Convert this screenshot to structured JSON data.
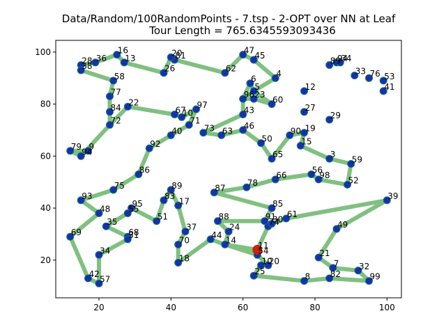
{
  "chart_data": {
    "type": "scatter",
    "title": "Data/Random/100RandomPoints - 7.tsp - 2-OPT over NN at Leaf",
    "subtitle": "Tour Length = 765.6345593093436",
    "xlabel": "",
    "ylabel": "",
    "xlim": [
      8,
      104
    ],
    "ylim": [
      5.5,
      104.5
    ],
    "xticks": [
      20,
      40,
      60,
      80,
      100
    ],
    "yticks": [
      20,
      40,
      60,
      80,
      100
    ],
    "grid": false,
    "colors": {
      "tour": "#80c080",
      "point": "#1a2fb0",
      "point_edge": "#0e7a6e",
      "start": "#cc2200"
    },
    "start_point": {
      "x": 64,
      "y": 24
    },
    "points": [
      {
        "label": "11",
        "x": 64,
        "y": 24
      },
      {
        "label": "74",
        "x": 67,
        "y": 33
      },
      {
        "label": "91",
        "x": 66,
        "y": 35
      },
      {
        "label": "30",
        "x": 68,
        "y": 34
      },
      {
        "label": "61",
        "x": 72,
        "y": 36
      },
      {
        "label": "39",
        "x": 100,
        "y": 43
      },
      {
        "label": "49",
        "x": 86,
        "y": 32
      },
      {
        "label": "21",
        "x": 81,
        "y": 21
      },
      {
        "label": "7",
        "x": 85,
        "y": 17
      },
      {
        "label": "32",
        "x": 92,
        "y": 16
      },
      {
        "label": "99",
        "x": 95,
        "y": 12
      },
      {
        "label": "82",
        "x": 84,
        "y": 13
      },
      {
        "label": "8",
        "x": 77,
        "y": 12
      },
      {
        "label": "25",
        "x": 63,
        "y": 14
      },
      {
        "label": "10",
        "x": 65,
        "y": 18
      },
      {
        "label": "20",
        "x": 67,
        "y": 18
      },
      {
        "label": "54",
        "x": 64,
        "y": 22
      },
      {
        "label": "14",
        "x": 55,
        "y": 26
      },
      {
        "label": "44",
        "x": 51,
        "y": 28
      },
      {
        "label": "24",
        "x": 56,
        "y": 31
      },
      {
        "label": "88",
        "x": 53,
        "y": 35
      },
      {
        "label": "85",
        "x": 68,
        "y": 40
      },
      {
        "label": "87",
        "x": 52,
        "y": 46
      },
      {
        "label": "78",
        "x": 61,
        "y": 48
      },
      {
        "label": "66",
        "x": 69,
        "y": 51
      },
      {
        "label": "56",
        "x": 79,
        "y": 53
      },
      {
        "label": "98",
        "x": 81,
        "y": 51
      },
      {
        "label": "52",
        "x": 89,
        "y": 49
      },
      {
        "label": "59",
        "x": 90,
        "y": 57
      },
      {
        "label": "3",
        "x": 84,
        "y": 59
      },
      {
        "label": "15",
        "x": 76,
        "y": 64
      },
      {
        "label": "19",
        "x": 77,
        "y": 69
      },
      {
        "label": "27",
        "x": 77,
        "y": 77
      },
      {
        "label": "12",
        "x": 77,
        "y": 85
      },
      {
        "label": "89",
        "x": 84,
        "y": 95
      },
      {
        "label": "94",
        "x": 86,
        "y": 96
      },
      {
        "label": "34",
        "x": 87,
        "y": 96
      },
      {
        "label": "33",
        "x": 91,
        "y": 91
      },
      {
        "label": "76",
        "x": 95,
        "y": 90
      },
      {
        "label": "53",
        "x": 99,
        "y": 89
      },
      {
        "label": "41",
        "x": 99,
        "y": 85
      },
      {
        "label": "29",
        "x": 84,
        "y": 74
      },
      {
        "label": "90",
        "x": 73,
        "y": 68
      },
      {
        "label": "65",
        "x": 68,
        "y": 59
      },
      {
        "label": "50",
        "x": 65,
        "y": 65
      },
      {
        "label": "46",
        "x": 60,
        "y": 70
      },
      {
        "label": "63",
        "x": 54,
        "y": 68
      },
      {
        "label": "73",
        "x": 49,
        "y": 69
      },
      {
        "label": "43",
        "x": 60,
        "y": 76
      },
      {
        "label": "96",
        "x": 60,
        "y": 82
      },
      {
        "label": "6",
        "x": 62,
        "y": 88
      },
      {
        "label": "5",
        "x": 63,
        "y": 85
      },
      {
        "label": "23",
        "x": 63,
        "y": 82
      },
      {
        "label": "60",
        "x": 68,
        "y": 80
      },
      {
        "label": "4",
        "x": 69,
        "y": 90
      },
      {
        "label": "45",
        "x": 63,
        "y": 97
      },
      {
        "label": "47",
        "x": 60,
        "y": 99
      },
      {
        "label": "62",
        "x": 55,
        "y": 92
      },
      {
        "label": "81",
        "x": 41,
        "y": 97
      },
      {
        "label": "20",
        "x": 40,
        "y": 98
      },
      {
        "label": "26",
        "x": 38,
        "y": 92
      },
      {
        "label": "13",
        "x": 27,
        "y": 96
      },
      {
        "label": "16",
        "x": 25,
        "y": 99
      },
      {
        "label": "36",
        "x": 19,
        "y": 96
      },
      {
        "label": "28",
        "x": 15,
        "y": 95
      },
      {
        "label": "38",
        "x": 15,
        "y": 93
      },
      {
        "label": "58",
        "x": 24,
        "y": 89
      },
      {
        "label": "77",
        "x": 23,
        "y": 83
      },
      {
        "label": "84",
        "x": 23,
        "y": 77
      },
      {
        "label": "72",
        "x": 23,
        "y": 72
      },
      {
        "label": "22",
        "x": 28,
        "y": 79
      },
      {
        "label": "67",
        "x": 41,
        "y": 76
      },
      {
        "label": "10",
        "x": 43,
        "y": 75
      },
      {
        "label": "97",
        "x": 47,
        "y": 78
      },
      {
        "label": "71",
        "x": 45,
        "y": 72
      },
      {
        "label": "40",
        "x": 40,
        "y": 68
      },
      {
        "label": "92",
        "x": 34,
        "y": 63
      },
      {
        "label": "86",
        "x": 31,
        "y": 53
      },
      {
        "label": "75",
        "x": 24,
        "y": 47
      },
      {
        "label": "93",
        "x": 15,
        "y": 43
      },
      {
        "label": "48",
        "x": 20,
        "y": 38
      },
      {
        "label": "69",
        "x": 12,
        "y": 29
      },
      {
        "label": "42",
        "x": 17,
        "y": 13
      },
      {
        "label": "57",
        "x": 20,
        "y": 11
      },
      {
        "label": "34",
        "x": 20,
        "y": 22
      },
      {
        "label": "68",
        "x": 28,
        "y": 29
      },
      {
        "label": "31",
        "x": 28,
        "y": 28
      },
      {
        "label": "35",
        "x": 22,
        "y": 33
      },
      {
        "label": "55",
        "x": 28,
        "y": 38
      },
      {
        "label": "95",
        "x": 29,
        "y": 40
      },
      {
        "label": "51",
        "x": 36,
        "y": 35
      },
      {
        "label": "83",
        "x": 38,
        "y": 43
      },
      {
        "label": "89",
        "x": 40,
        "y": 47
      },
      {
        "label": "17",
        "x": 42,
        "y": 41
      },
      {
        "label": "37",
        "x": 44,
        "y": 31
      },
      {
        "label": "70",
        "x": 42,
        "y": 26
      },
      {
        "label": "18",
        "x": 42,
        "y": 19
      },
      {
        "label": "9",
        "x": 17,
        "y": 62
      },
      {
        "label": "79",
        "x": 12,
        "y": 62
      },
      {
        "label": "94",
        "x": 15,
        "y": 60
      }
    ],
    "tour": [
      [
        64,
        24
      ],
      [
        67,
        33
      ],
      [
        66,
        35
      ],
      [
        68,
        34
      ],
      [
        72,
        36
      ],
      [
        100,
        43
      ],
      [
        86,
        32
      ],
      [
        81,
        21
      ],
      [
        85,
        17
      ],
      [
        92,
        16
      ],
      [
        95,
        12
      ],
      [
        84,
        13
      ],
      [
        77,
        12
      ],
      [
        63,
        14
      ],
      [
        65,
        18
      ],
      [
        67,
        18
      ],
      [
        64,
        22
      ],
      [
        55,
        26
      ],
      [
        51,
        28
      ],
      [
        42,
        19
      ],
      [
        42,
        26
      ],
      [
        44,
        31
      ],
      [
        42,
        41
      ],
      [
        40,
        47
      ],
      [
        38,
        43
      ],
      [
        36,
        35
      ],
      [
        29,
        40
      ],
      [
        28,
        38
      ],
      [
        22,
        33
      ],
      [
        28,
        29
      ],
      [
        28,
        28
      ],
      [
        20,
        22
      ],
      [
        20,
        11
      ],
      [
        17,
        13
      ],
      [
        12,
        29
      ],
      [
        20,
        38
      ],
      [
        15,
        43
      ],
      [
        24,
        47
      ],
      [
        31,
        53
      ],
      [
        34,
        63
      ],
      [
        40,
        68
      ],
      [
        45,
        72
      ],
      [
        47,
        78
      ],
      [
        43,
        75
      ],
      [
        41,
        76
      ],
      [
        28,
        79
      ],
      [
        23,
        72
      ],
      [
        23,
        77
      ],
      [
        23,
        83
      ],
      [
        24,
        89
      ],
      [
        15,
        93
      ],
      [
        15,
        95
      ],
      [
        19,
        96
      ],
      [
        25,
        99
      ],
      [
        27,
        96
      ],
      [
        38,
        92
      ],
      [
        40,
        98
      ],
      [
        41,
        97
      ],
      [
        55,
        92
      ],
      [
        60,
        99
      ],
      [
        63,
        97
      ],
      [
        69,
        90
      ],
      [
        63,
        85
      ],
      [
        62,
        88
      ],
      [
        60,
        82
      ],
      [
        63,
        82
      ],
      [
        68,
        80
      ],
      [
        63,
        85
      ],
      [
        60,
        82
      ],
      [
        60,
        76
      ],
      [
        49,
        69
      ],
      [
        54,
        68
      ],
      [
        60,
        70
      ],
      [
        65,
        65
      ],
      [
        68,
        59
      ],
      [
        73,
        68
      ],
      [
        77,
        69
      ],
      [
        76,
        64
      ],
      [
        84,
        59
      ],
      [
        90,
        57
      ],
      [
        89,
        49
      ],
      [
        81,
        51
      ],
      [
        79,
        53
      ],
      [
        69,
        51
      ],
      [
        61,
        48
      ],
      [
        52,
        46
      ],
      [
        68,
        40
      ],
      [
        66,
        35
      ],
      [
        53,
        35
      ],
      [
        56,
        31
      ],
      [
        55,
        26
      ],
      [
        64,
        24
      ]
    ],
    "left_chain": [
      [
        17,
        62
      ],
      [
        12,
        62
      ],
      [
        15,
        60
      ],
      [
        23,
        72
      ]
    ]
  }
}
